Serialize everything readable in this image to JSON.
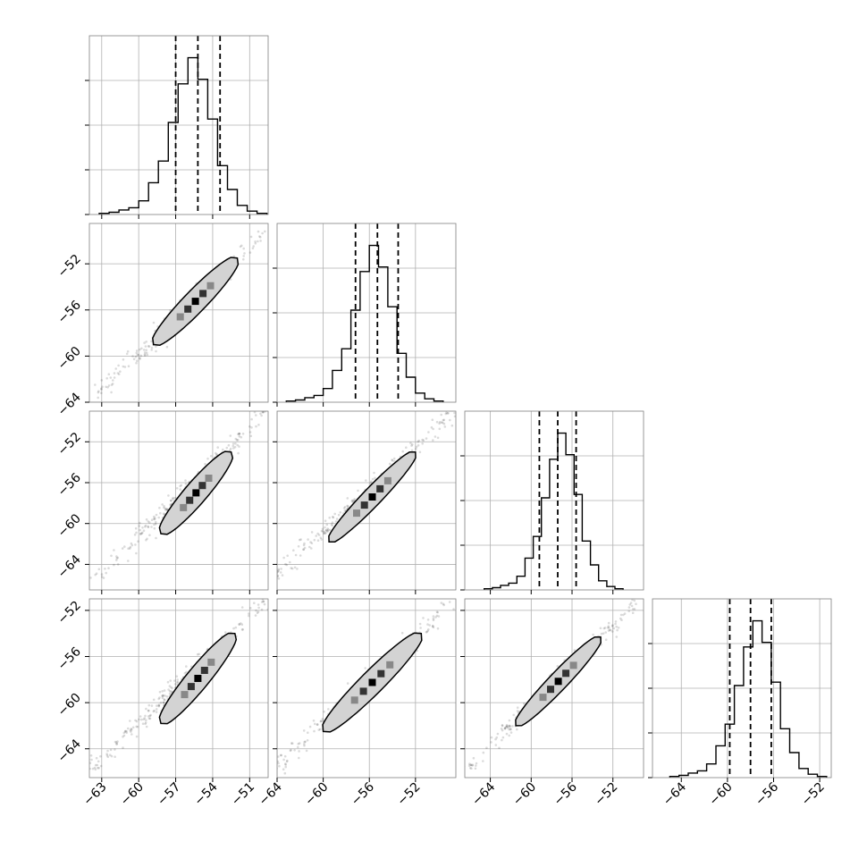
{
  "chart_data": {
    "type": "corner",
    "parameters": 4,
    "quantiles": [
      0.16,
      0.5,
      0.84
    ],
    "grid": true,
    "colors": {
      "line": "#000000",
      "grid": "#b0b0b0",
      "contour_fill": "#d3d3d3",
      "spine": "#808080"
    },
    "axes": [
      {
        "range": [
          -64,
          -49.5
        ],
        "ticks": [
          -63,
          -60,
          -57,
          -54,
          -51
        ],
        "tick_labels": [
          "−63",
          "−60",
          "−57",
          "−54",
          "−51"
        ]
      },
      {
        "range": [
          -64,
          -48.5
        ],
        "ticks": [
          -64,
          -60,
          -56,
          -52
        ],
        "tick_labels": [
          "−64",
          "−60",
          "−56",
          "−52"
        ]
      },
      {
        "range": [
          -66.5,
          -49
        ],
        "ticks": [
          -64,
          -60,
          -56,
          -52
        ],
        "tick_labels": [
          "−64",
          "−60",
          "−56",
          "−52"
        ]
      },
      {
        "range": [
          -66.5,
          -51
        ],
        "ticks": [
          -64,
          -60,
          -56,
          -52
        ],
        "tick_labels": [
          "−64",
          "−60",
          "−56",
          "−52"
        ]
      }
    ],
    "marginals": [
      {
        "param": 0,
        "bin_edges": [
          -63.2,
          -62.4,
          -61.6,
          -60.8,
          -60.0,
          -59.2,
          -58.4,
          -57.6,
          -56.8,
          -56.0,
          -55.2,
          -54.4,
          -53.6,
          -52.8,
          -52.0,
          -51.2,
          -50.4,
          -49.6
        ],
        "counts": [
          1,
          2,
          4,
          6,
          12,
          28,
          47,
          81,
          115,
          138,
          119,
          84,
          43,
          22,
          8,
          3,
          1
        ],
        "quantile_values": [
          -57.0,
          -55.2,
          -53.4
        ]
      },
      {
        "param": 1,
        "bin_edges": [
          -63.2,
          -62.4,
          -61.6,
          -60.8,
          -60.0,
          -59.2,
          -58.4,
          -57.6,
          -56.8,
          -56.0,
          -55.2,
          -54.4,
          -53.6,
          -52.8,
          -52.0,
          -51.2,
          -50.4,
          -49.6
        ],
        "counts": [
          1,
          2,
          4,
          6,
          12,
          28,
          47,
          81,
          115,
          138,
          119,
          84,
          43,
          22,
          8,
          3,
          1
        ],
        "quantile_values": [
          -57.2,
          -55.3,
          -53.5
        ]
      },
      {
        "param": 2,
        "bin_edges": [
          -64.6,
          -63.8,
          -63.0,
          -62.2,
          -61.4,
          -60.6,
          -59.8,
          -59.0,
          -58.2,
          -57.4,
          -56.6,
          -55.8,
          -55.0,
          -54.2,
          -53.4,
          -52.6,
          -51.8,
          -51.0
        ],
        "counts": [
          1,
          2,
          4,
          6,
          12,
          28,
          47,
          81,
          115,
          138,
          119,
          84,
          43,
          22,
          8,
          3,
          1
        ],
        "quantile_values": [
          -59.2,
          -57.4,
          -55.6
        ]
      },
      {
        "param": 3,
        "bin_edges": [
          -65.0,
          -64.2,
          -63.4,
          -62.6,
          -61.8,
          -61.0,
          -60.2,
          -59.4,
          -58.6,
          -57.8,
          -57.0,
          -56.2,
          -55.4,
          -54.6,
          -53.8,
          -53.0,
          -52.2,
          -51.4
        ],
        "counts": [
          1,
          2,
          4,
          6,
          12,
          28,
          47,
          81,
          115,
          138,
          119,
          84,
          43,
          22,
          8,
          3,
          1
        ],
        "quantile_values": [
          -59.8,
          -58.0,
          -56.2
        ]
      }
    ],
    "pairs": [
      {
        "x": 0,
        "y": 1,
        "cloud_from": [
          -63.0,
          -63.0
        ],
        "cloud_to": [
          -50.0,
          -49.5
        ],
        "contour": {
          "center": [
            -55.5,
            -55.3
          ],
          "from": [
            -58.8,
            -59.0
          ],
          "to": [
            -52.0,
            -51.5
          ],
          "half_width": 0.9
        }
      },
      {
        "x": 0,
        "y": 2,
        "cloud_from": [
          -63.0,
          -65.0
        ],
        "cloud_to": [
          -50.0,
          -49.5
        ],
        "contour": {
          "center": [
            -55.2,
            -57.0
          ],
          "from": [
            -58.2,
            -61.0
          ],
          "to": [
            -52.5,
            -53.0
          ],
          "half_width": 0.9
        }
      },
      {
        "x": 1,
        "y": 2,
        "cloud_from": [
          -64.0,
          -65.0
        ],
        "cloud_to": [
          -49.0,
          -49.5
        ],
        "contour": {
          "center": [
            -55.5,
            -57.0
          ],
          "from": [
            -59.5,
            -61.8
          ],
          "to": [
            -52.0,
            -53.0
          ],
          "half_width": 0.8
        }
      },
      {
        "x": 0,
        "y": 3,
        "cloud_from": [
          -63.5,
          -65.5
        ],
        "cloud_to": [
          -50.0,
          -51.5
        ],
        "contour": {
          "center": [
            -55.2,
            -58.0
          ],
          "from": [
            -58.2,
            -61.8
          ],
          "to": [
            -52.2,
            -54.0
          ],
          "half_width": 0.9
        }
      },
      {
        "x": 1,
        "y": 3,
        "cloud_from": [
          -64.0,
          -65.5
        ],
        "cloud_to": [
          -49.0,
          -51.5
        ],
        "contour": {
          "center": [
            -55.5,
            -58.0
          ],
          "from": [
            -60.0,
            -62.5
          ],
          "to": [
            -51.5,
            -54.0
          ],
          "half_width": 1.0
        }
      },
      {
        "x": 2,
        "y": 3,
        "cloud_from": [
          -66.0,
          -65.5
        ],
        "cloud_to": [
          -50.0,
          -51.5
        ],
        "contour": {
          "center": [
            -57.5,
            -58.0
          ],
          "from": [
            -61.5,
            -62.0
          ],
          "to": [
            -53.2,
            -54.3
          ],
          "half_width": 0.9
        }
      }
    ]
  }
}
